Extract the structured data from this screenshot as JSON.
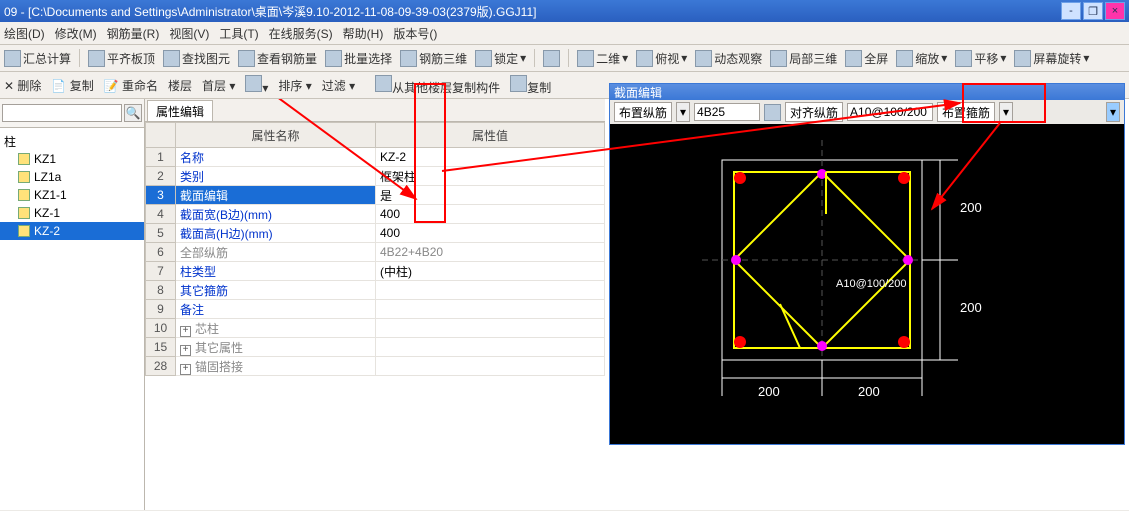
{
  "title": "09 - [C:\\Documents and Settings\\Administrator\\桌面\\岑溪9.10-2012-11-08-09-39-03(2379版).GGJ11]",
  "menu": [
    "绘图(D)",
    "修改(M)",
    "钢筋量(R)",
    "视图(V)",
    "工具(T)",
    "在线服务(S)",
    "帮助(H)",
    "版本号()"
  ],
  "toolbar1": {
    "sum": "汇总计算",
    "flat": "平齐板顶",
    "find": "查找图元",
    "view_rebar": "查看钢筋量",
    "batch": "批量选择",
    "tri": "钢筋三维",
    "lock": "锁定",
    "two_d": "二维",
    "rot": "俯视",
    "dyn": "动态观察",
    "local3d": "局部三维",
    "full": "全屏",
    "zoom": "缩放",
    "pan": "平移",
    "screen_rot": "屏幕旋转"
  },
  "toolbar2": {
    "del": "删除",
    "copy": "复制",
    "rename": "重命名",
    "floor": "楼层",
    "first": "首层",
    "sort": "排序",
    "filter": "过滤",
    "copy_from": "从其他楼层复制构件",
    "cpy": "复制"
  },
  "left": {
    "search_placeholder": "",
    "root": "柱",
    "items": [
      "KZ1",
      "LZ1a",
      "KZ1-1",
      "KZ-1",
      "KZ-2"
    ],
    "selected": 4
  },
  "mid": {
    "tab": "属性编辑",
    "headers": {
      "name": "属性名称",
      "value": "属性值"
    },
    "rows": [
      {
        "n": "1",
        "name": "名称",
        "val": "KZ-2",
        "blue": true
      },
      {
        "n": "2",
        "name": "类别",
        "val": "框架柱",
        "blue": true
      },
      {
        "n": "3",
        "name": "截面编辑",
        "val": "是",
        "blue": true,
        "selected": true
      },
      {
        "n": "4",
        "name": "截面宽(B边)(mm)",
        "val": "400",
        "blue": true
      },
      {
        "n": "5",
        "name": "截面高(H边)(mm)",
        "val": "400",
        "blue": true
      },
      {
        "n": "6",
        "name": "全部纵筋",
        "val": "4B22+4B20",
        "gray": true
      },
      {
        "n": "7",
        "name": "柱类型",
        "val": "(中柱)",
        "blue": true
      },
      {
        "n": "8",
        "name": "其它箍筋",
        "val": "",
        "blue": true
      },
      {
        "n": "9",
        "name": "备注",
        "val": "",
        "blue": true
      },
      {
        "n": "10",
        "name": "芯柱",
        "val": "",
        "gray": true,
        "exp": true
      },
      {
        "n": "15",
        "name": "其它属性",
        "val": "",
        "gray": true,
        "exp": true
      },
      {
        "n": "28",
        "name": "锚固搭接",
        "val": "",
        "gray": true,
        "exp": true
      }
    ]
  },
  "section": {
    "title": "截面编辑",
    "btn1": "布置纵筋",
    "input1": "4B25",
    "btn2": "对齐纵筋",
    "input2": "A10@100/200",
    "btn3": "布置箍筋",
    "dims": {
      "top_r": "200",
      "mid_r": "200",
      "bot_l": "200",
      "bot_r": "200",
      "label": "A10@100/200"
    },
    "colors": {
      "bg": "#000000",
      "rebar": "#ff0000",
      "stirrup": "#ffff00",
      "frame": "#ffffff",
      "anchor": "#ff00ff"
    }
  }
}
